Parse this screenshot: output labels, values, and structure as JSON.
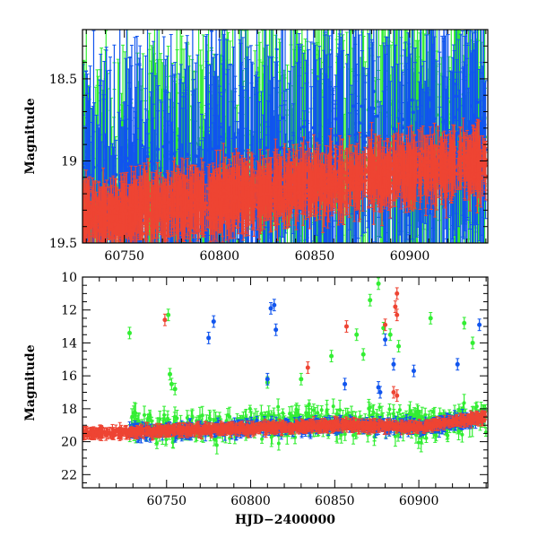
{
  "colors": {
    "green": "#33ee33",
    "blue": "#1155ee",
    "red": "#ee4433",
    "axis": "#000000"
  },
  "chart_data": [
    {
      "type": "scatter",
      "panel": "top",
      "title": "",
      "xlabel": "",
      "ylabel": "Magnitude",
      "xlim": [
        60728,
        60941
      ],
      "ylim": [
        19.5,
        18.2
      ],
      "y_inverted": true,
      "xticks": [
        60750,
        60800,
        60850,
        60900
      ],
      "yticks": [
        18.5,
        19,
        19.5
      ],
      "ytick_labels": [
        "18.5",
        "19",
        "19.5"
      ],
      "series": [
        {
          "color": "green",
          "error_bars": true,
          "x_range": [
            60728,
            60940
          ],
          "y_range": [
            18.2,
            19.5
          ]
        },
        {
          "color": "blue",
          "error_bars": true,
          "x_range": [
            60728,
            60940
          ],
          "y_range": [
            18.2,
            19.5
          ]
        },
        {
          "color": "red",
          "error_bars": true,
          "x_range": [
            60728,
            60940
          ],
          "y_range": [
            18.4,
            19.5
          ]
        }
      ]
    },
    {
      "type": "scatter",
      "panel": "bottom",
      "title": "",
      "xlabel": "HJD−2400000",
      "ylabel": "Magnitude",
      "xlim": [
        60700,
        60941
      ],
      "ylim": [
        22.8,
        10
      ],
      "y_inverted": true,
      "xticks": [
        60750,
        60800,
        60850,
        60900
      ],
      "yticks": [
        10,
        12,
        14,
        16,
        18,
        20,
        22
      ],
      "ytick_labels": [
        "10",
        "12",
        "14",
        "16",
        "18",
        "20",
        "22"
      ],
      "series": [
        {
          "color": "green",
          "error_bars": true,
          "baseline": [
            [
              60728,
              19.2
            ],
            [
              60800,
              19.0
            ],
            [
              60850,
              18.8
            ],
            [
              60900,
              18.9
            ],
            [
              60940,
              18.5
            ]
          ],
          "outliers": [
            [
              60728,
              13.4
            ],
            [
              60751,
              12.3
            ],
            [
              60752,
              15.9
            ],
            [
              60753,
              16.5
            ],
            [
              60755,
              16.8
            ],
            [
              60810,
              16.4
            ],
            [
              60830,
              16.2
            ],
            [
              60848,
              14.8
            ],
            [
              60863,
              13.5
            ],
            [
              60867,
              14.7
            ],
            [
              60871,
              11.4
            ],
            [
              60876,
              10.4
            ],
            [
              60879,
              13.1
            ],
            [
              60883,
              13.5
            ],
            [
              60888,
              14.2
            ],
            [
              60907,
              12.5
            ],
            [
              60927,
              12.8
            ],
            [
              60932,
              14.0
            ]
          ]
        },
        {
          "color": "blue",
          "error_bars": true,
          "baseline": [
            [
              60728,
              19.4
            ],
            [
              60800,
              19.2
            ],
            [
              60850,
              19.0
            ],
            [
              60900,
              19.1
            ],
            [
              60940,
              18.6
            ]
          ],
          "outliers": [
            [
              60778,
              12.7
            ],
            [
              60775,
              13.7
            ],
            [
              60812,
              11.9
            ],
            [
              60814,
              11.7
            ],
            [
              60815,
              13.2
            ],
            [
              60810,
              16.2
            ],
            [
              60856,
              16.5
            ],
            [
              60876,
              16.7
            ],
            [
              60877,
              17.0
            ],
            [
              60880,
              13.8
            ],
            [
              60885,
              15.3
            ],
            [
              60897,
              15.7
            ],
            [
              60923,
              15.3
            ],
            [
              60936,
              12.9
            ]
          ]
        },
        {
          "color": "red",
          "error_bars": true,
          "baseline": [
            [
              60700,
              19.5
            ],
            [
              60728,
              19.4
            ],
            [
              60800,
              19.2
            ],
            [
              60850,
              19.0
            ],
            [
              60900,
              19.1
            ],
            [
              60940,
              18.5
            ]
          ],
          "outliers": [
            [
              60749,
              12.6
            ],
            [
              60834,
              15.5
            ],
            [
              60857,
              13.0
            ],
            [
              60880,
              12.9
            ],
            [
              60886,
              11.8
            ],
            [
              60887,
              11.0
            ],
            [
              60887,
              12.3
            ],
            [
              60885,
              17.0
            ],
            [
              60887,
              17.2
            ]
          ]
        }
      ]
    }
  ]
}
